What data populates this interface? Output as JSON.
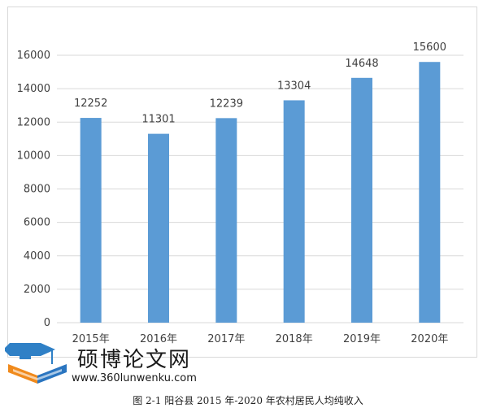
{
  "chart_data": {
    "type": "bar",
    "categories": [
      "2015年",
      "2016年",
      "2017年",
      "2018年",
      "2019年",
      "2020年"
    ],
    "values": [
      12252,
      11301,
      12239,
      13304,
      14648,
      15600
    ],
    "data_labels": [
      "12252",
      "11301",
      "12239",
      "13304",
      "14648",
      "15600"
    ],
    "title": "",
    "xlabel": "",
    "ylabel": "",
    "ylim": [
      0,
      16000
    ],
    "yticks": [
      0,
      2000,
      4000,
      6000,
      8000,
      10000,
      12000,
      14000,
      16000
    ],
    "grid": true,
    "legend": "none",
    "bar_color": "#5b9bd5",
    "grid_color": "#d9d9d9"
  },
  "watermark": {
    "title": "硕博论文网",
    "url": "www.360lunwenku.com",
    "colors": {
      "cap": "#2f80c6",
      "book_orange": "#f08a1c",
      "book_blue": "#2a75c0"
    }
  },
  "caption": "图 2-1    阳谷县 2015 年-2020 年农村居民人均纯收入"
}
